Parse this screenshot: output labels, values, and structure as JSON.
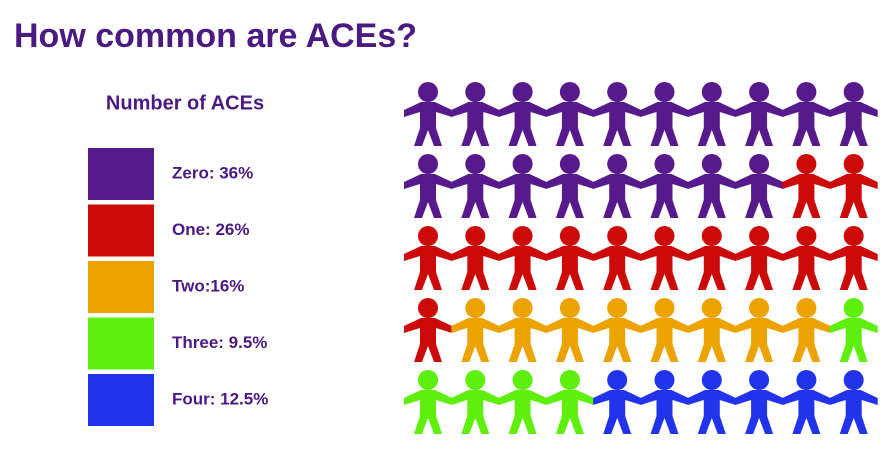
{
  "chart_data": {
    "type": "pictogram",
    "title": "How common are ACEs?",
    "legend_title": "Number of ACEs",
    "categories": [
      "Zero: 36%",
      "One: 26%",
      "Two:16%",
      "Three: 9.5%",
      "Four: 12.5%"
    ],
    "values": [
      36,
      26,
      16,
      9.5,
      12.5
    ],
    "colors": [
      "#561a8c",
      "#cc0a0a",
      "#eca300",
      "#5ef00c",
      "#2233ec"
    ]
  }
}
